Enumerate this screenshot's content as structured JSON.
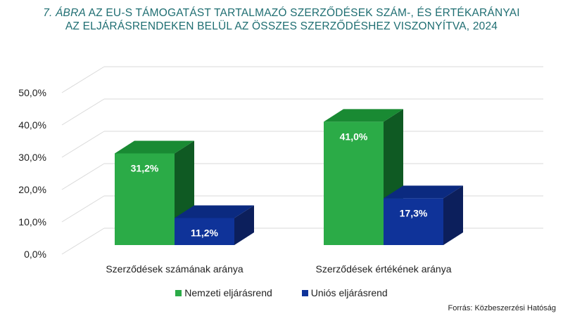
{
  "title": {
    "lead": "7. ÁBRA",
    "line1_rest": " AZ EU-S TÁMOGATÁST TARTALMAZÓ SZERZŐDÉSEK SZÁM-, ÉS ÉRTÉKARÁNYAI",
    "line2": "AZ ELJÁRÁSRENDEKEN BELÜL AZ ÖSSZES SZERZŐDÉSHEZ VISZONYÍTVA, 2024"
  },
  "source": "Forrás: Közbeszerzési Hatóság",
  "colors": {
    "title": "#1f6e72",
    "national_front": "#2bab47",
    "national_side": "#0f5a23",
    "national_top": "#198a33",
    "eu_front": "#0f3399",
    "eu_side": "#0c1f5c",
    "eu_top": "#0b2a80",
    "grid": "#d9d9d9"
  },
  "chart_data": {
    "type": "bar",
    "style": "3d-clustered-column",
    "categories": [
      "Szerződések számának aránya",
      "Szerződések értékének aránya"
    ],
    "series": [
      {
        "name": "Nemzeti eljárásrend",
        "values": [
          31.2,
          41.0
        ],
        "labels": [
          "31,2%",
          "41,0%"
        ]
      },
      {
        "name": "Uniós eljárásrend",
        "values": [
          11.2,
          17.3
        ],
        "labels": [
          "11,2%",
          "17,3%"
        ]
      }
    ],
    "ylim": [
      0,
      50
    ],
    "yticks": [
      "0,0%",
      "10,0%",
      "20,0%",
      "30,0%",
      "40,0%",
      "50,0%"
    ],
    "grid": true,
    "legend_position": "bottom"
  }
}
